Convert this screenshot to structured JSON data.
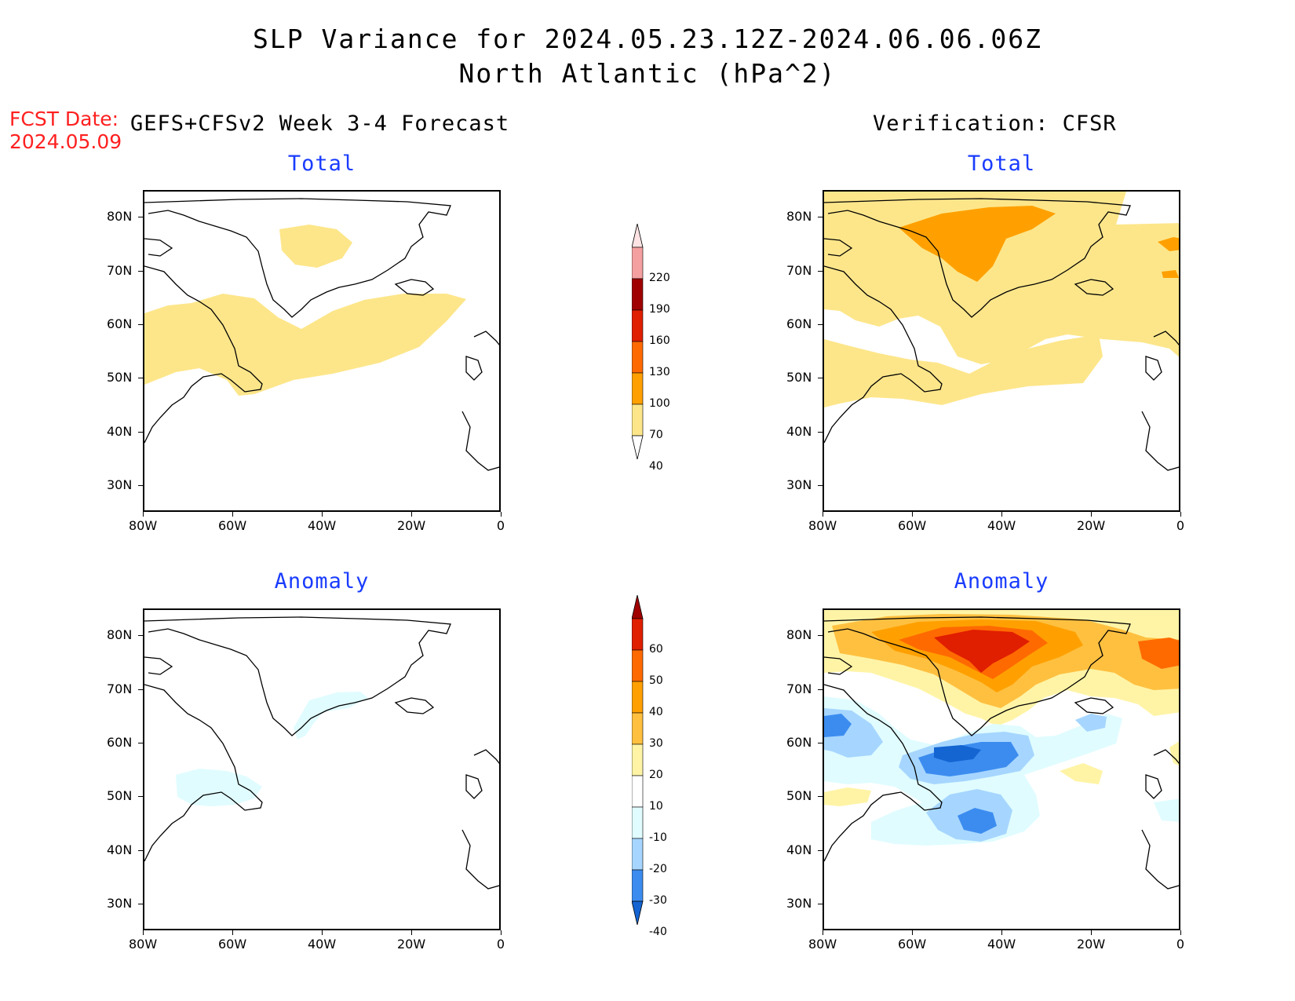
{
  "header": {
    "title_line1": "SLP Variance for 2024.05.23.12Z-2024.06.06.06Z",
    "title_line2": "North Atlantic (hPa^2)",
    "fcst_label": "FCST Date:",
    "fcst_date": "2024.05.09",
    "left_column": "GEFS+CFSv2 Week 3-4 Forecast",
    "right_column": "Verification: CFSR"
  },
  "panel_titles": {
    "fcst_total": "Total",
    "ver_total": "Total",
    "fcst_anom": "Anomaly",
    "ver_anom": "Anomaly"
  },
  "axes": {
    "lat_ticks": [
      "80N",
      "70N",
      "60N",
      "50N",
      "40N",
      "30N"
    ],
    "lon_ticks": [
      "80W",
      "60W",
      "40W",
      "20W",
      "0"
    ],
    "lat_range": [
      25,
      85
    ],
    "lon_range": [
      -80,
      0
    ]
  },
  "colorbars": {
    "total": {
      "levels": [
        "220",
        "190",
        "160",
        "130",
        "100",
        "70",
        "40"
      ],
      "colors": [
        "#fde3e3",
        "#f4a0a0",
        "#a00000",
        "#e01e00",
        "#ff6a00",
        "#ffa000",
        "#fde68a"
      ]
    },
    "anomaly": {
      "levels": [
        "60",
        "50",
        "40",
        "30",
        "20",
        "10",
        "-10",
        "-20",
        "-30",
        "-40"
      ],
      "colors": [
        "#a00000",
        "#e01e00",
        "#ff6a00",
        "#ffa000",
        "#ffc040",
        "#fff4a6",
        "#ffffff",
        "#e0fcff",
        "#a6d6ff",
        "#3c8cf0",
        "#1464d2"
      ]
    }
  },
  "map_data": {
    "fcst_total": [
      {
        "level": 40,
        "color": "#fde68a",
        "region": "Labrador Sea to central North Atlantic band"
      },
      {
        "level": 40,
        "color": "#fde68a",
        "region": "central Greenland"
      }
    ],
    "ver_total": [
      {
        "level": 40,
        "color": "#fde68a",
        "region": "Arctic / Greenland / Nordic Seas"
      },
      {
        "level": 70,
        "color": "#ffa000",
        "region": "central Greenland"
      },
      {
        "level": 40,
        "color": "#fde68a",
        "region": "mid-latitude band 45-55N"
      }
    ],
    "fcst_anom": [
      {
        "level": -10,
        "color": "#e0fcff",
        "region": "southern Greenland and Newfoundland"
      }
    ],
    "ver_anom": [
      {
        "level": 50,
        "color": "#e01e00",
        "region": "central Greenland maximum"
      },
      {
        "level": -30,
        "color": "#3c8cf0",
        "region": "south of Greenland and mid-Atlantic 45N"
      }
    ]
  }
}
